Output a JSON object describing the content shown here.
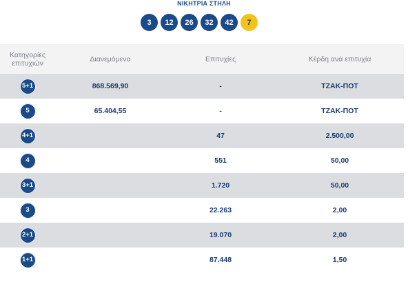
{
  "header": {
    "title": "ΝΙΚΗΤΡΙΑ ΣΤΗΛΗ",
    "numbers": [
      "3",
      "12",
      "26",
      "32",
      "42"
    ],
    "joker": "7"
  },
  "table": {
    "columns": {
      "category": "Κατηγορίες επιτυχιών",
      "distributed": "Διανεμόμενα",
      "winners": "Επιτυχίες",
      "prize": "Κέρδη ανά επιτυχία"
    },
    "rows": [
      {
        "category": "5+1",
        "distributed": "868.569,90",
        "winners": "-",
        "prize": "ΤΖΑΚ-ΠΟΤ"
      },
      {
        "category": "5",
        "distributed": "65.404,55",
        "winners": "-",
        "prize": "ΤΖΑΚ-ΠΟΤ"
      },
      {
        "category": "4+1",
        "distributed": "",
        "winners": "47",
        "prize": "2.500,00"
      },
      {
        "category": "4",
        "distributed": "",
        "winners": "551",
        "prize": "50,00"
      },
      {
        "category": "3+1",
        "distributed": "",
        "winners": "1.720",
        "prize": "50,00"
      },
      {
        "category": "3",
        "distributed": "",
        "winners": "22.263",
        "prize": "2,00"
      },
      {
        "category": "2+1",
        "distributed": "",
        "winners": "19.070",
        "prize": "2,00"
      },
      {
        "category": "1+1",
        "distributed": "",
        "winners": "87.448",
        "prize": "1,50"
      }
    ]
  },
  "colors": {
    "ball_blue": "#1a4a87",
    "joker_yellow": "#f5c21c",
    "row_shade": "#dcdde0",
    "text_navy": "#1b3c6e"
  }
}
